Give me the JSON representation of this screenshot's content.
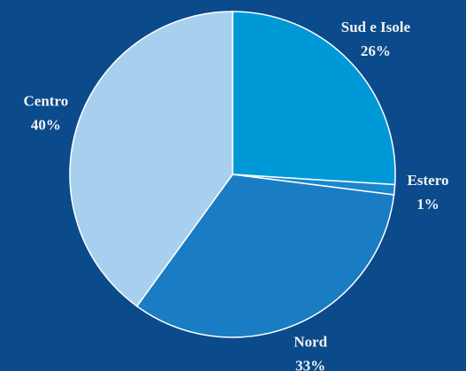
{
  "chart_data": {
    "type": "pie",
    "categories": [
      "Sud e Isole",
      "Estero",
      "Nord",
      "Centro"
    ],
    "values": [
      26,
      1,
      33,
      40
    ],
    "value_labels": [
      "26%",
      "1%",
      "33%",
      "40%"
    ],
    "colors": [
      "#0099d8",
      "#1b88cc",
      "#1a7dc4",
      "#a7d0ef"
    ],
    "background": "#0b4a8b"
  }
}
